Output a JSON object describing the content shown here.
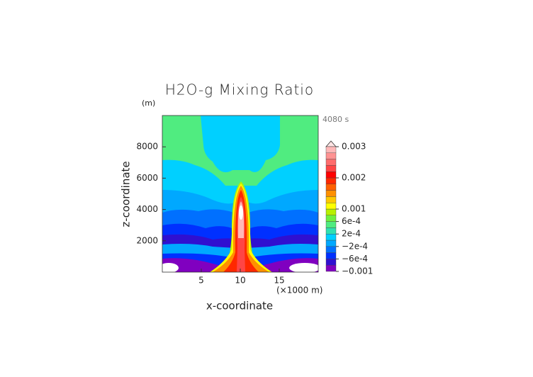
{
  "chart_data": {
    "type": "contour",
    "title": "H2O-g Mixing Ratio",
    "y_unit": "(m)",
    "time_label": "4080 s",
    "x_label": "x-coordinate",
    "x_unit": "(×1000 m)",
    "y_label": "z-coordinate",
    "xlim": [
      0,
      20
    ],
    "xticks": [
      5,
      10,
      15
    ],
    "ylim": [
      0,
      10000
    ],
    "yticks": [
      2000,
      4000,
      6000,
      8000
    ],
    "colorbar": {
      "levels": [
        -0.001,
        -0.0008,
        -0.0006,
        -0.0004,
        -0.0002,
        0,
        0.0002,
        0.0004,
        0.0006,
        0.0008,
        0.001,
        0.0012,
        0.0014,
        0.0016,
        0.0018,
        0.002,
        0.0022,
        0.0024,
        0.0026,
        0.0028,
        0.003
      ],
      "colors": [
        "#8000c0",
        "#3010d0",
        "#0030ff",
        "#0070ff",
        "#00a8ff",
        "#00d0ff",
        "#30e0b0",
        "#50ec80",
        "#70f040",
        "#b8f000",
        "#ffff00",
        "#ffc800",
        "#ff9000",
        "#ff6000",
        "#ff2800",
        "#ff0000",
        "#ff4545",
        "#ff6c6c",
        "#ff9292",
        "#ffb8b8"
      ],
      "ticks": [
        {
          "value": -0.001,
          "label": "−0.001"
        },
        {
          "value": -0.0006,
          "label": "−6e-4"
        },
        {
          "value": -0.0002,
          "label": "−2e-4"
        },
        {
          "value": 0.0002,
          "label": "2e-4"
        },
        {
          "value": 0.0006,
          "label": "6e-4"
        },
        0.001,
        0.002,
        0.003
      ]
    }
  }
}
